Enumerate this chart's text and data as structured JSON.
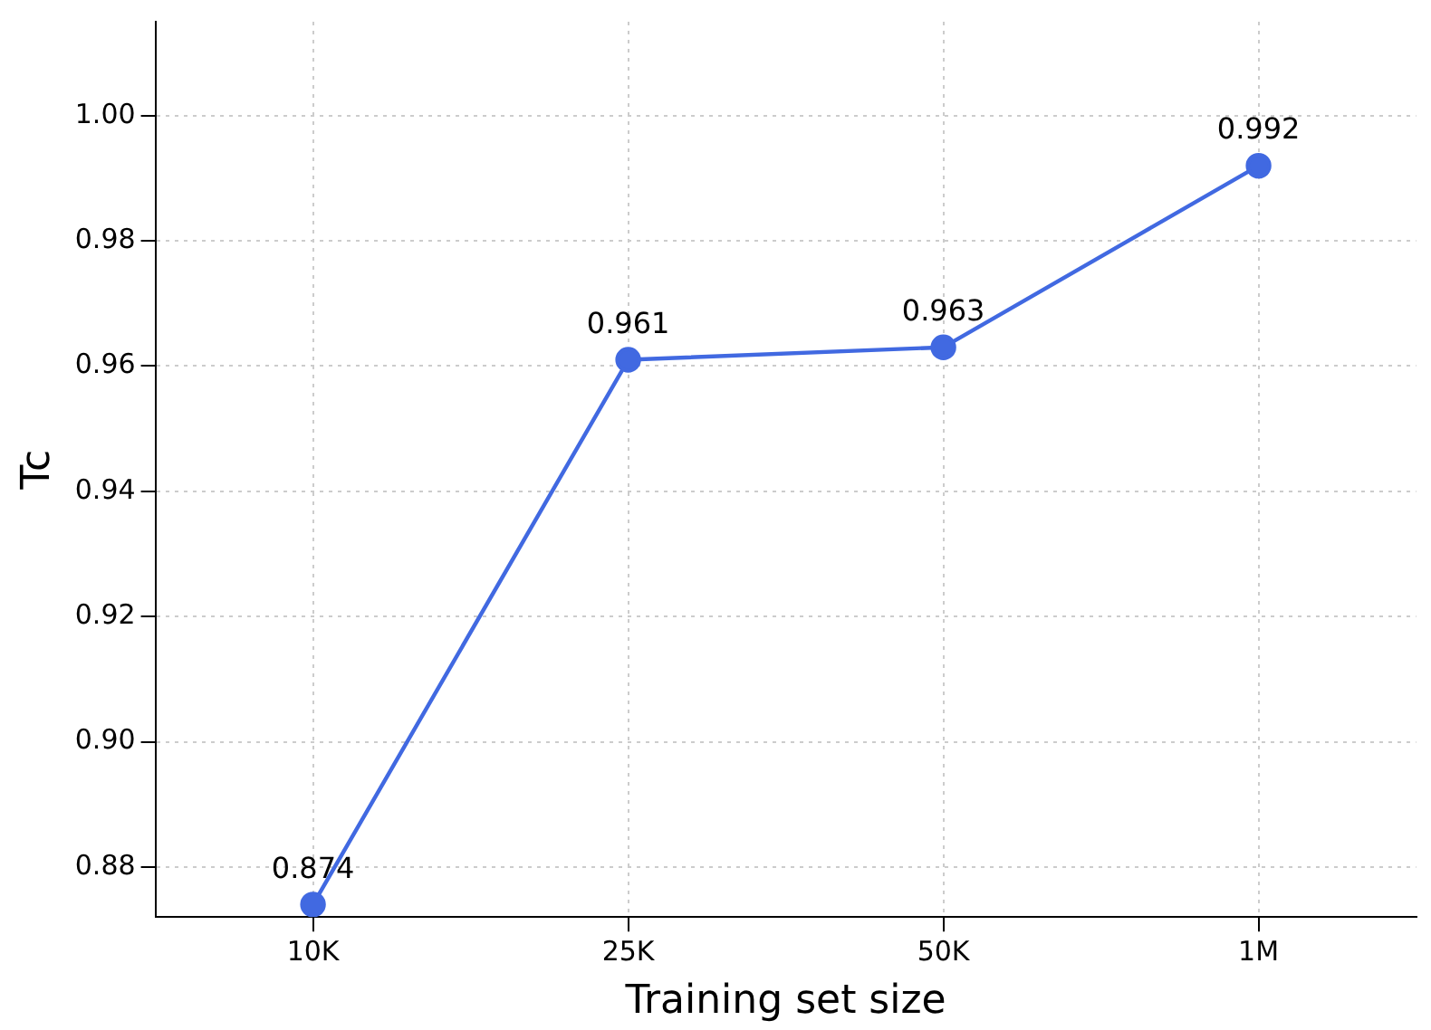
{
  "chart_data": {
    "type": "line",
    "xlabel": "Training set size",
    "ylabel": "Tc",
    "categories": [
      "10K",
      "25K",
      "50K",
      "1M"
    ],
    "series": [
      {
        "color": "#4169e1",
        "values": [
          0.874,
          0.961,
          0.963,
          0.992
        ]
      }
    ],
    "ylim": [
      0.872,
      1.015
    ],
    "yticks": [
      0.88,
      {
        "value": 0.9,
        "label": "0.90"
      },
      0.92,
      0.94,
      0.96,
      0.98,
      {
        "value": 1.0,
        "label": "1.00"
      }
    ],
    "grid": true,
    "marker": "circle",
    "line_style": "solid",
    "data_labels": true,
    "legend": false
  }
}
